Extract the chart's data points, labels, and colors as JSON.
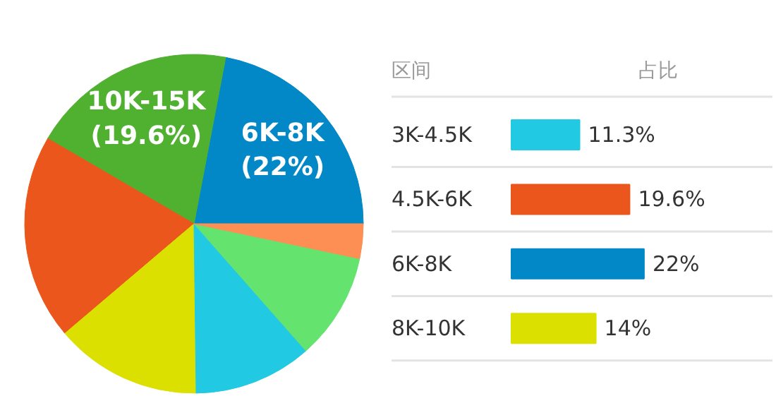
{
  "chart_data": [
    {
      "type": "pie",
      "categories": [
        "6K-8K",
        "10K-15K",
        null,
        null,
        null,
        null,
        null
      ],
      "values": [
        22,
        19.6,
        19.6,
        14,
        11.3,
        10.2,
        3.3
      ],
      "colors": [
        "#0288c6",
        "#50b131",
        "#ea561b",
        "#dbe000",
        "#22c9e3",
        "#64e36e",
        "#fd8e54"
      ],
      "value_labels": [
        "(22%)",
        "(19.6%)",
        null,
        null,
        null,
        null,
        null
      ]
    },
    {
      "type": "bar",
      "orientation": "horizontal",
      "categories": [
        "3K-4.5K",
        "4.5K-6K",
        "6K-8K",
        "8K-10K"
      ],
      "values": [
        11.3,
        19.6,
        22,
        14
      ],
      "colors": [
        "#22c9e3",
        "#ea561b",
        "#0288c6",
        "#dbe000"
      ],
      "value_labels": [
        "11.3%",
        "19.6%",
        "22%",
        "14%"
      ],
      "annotations": [
        "区间",
        "占比"
      ]
    }
  ]
}
